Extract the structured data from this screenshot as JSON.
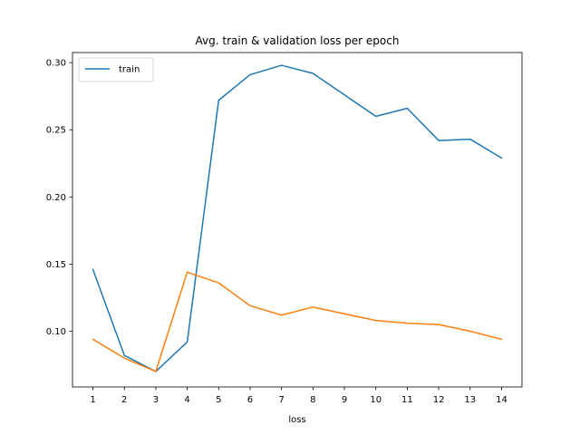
{
  "chart_data": {
    "type": "line",
    "title": "Avg. train & validation loss per epoch",
    "xlabel": "loss",
    "ylabel": "",
    "x": [
      1,
      2,
      3,
      4,
      5,
      6,
      7,
      8,
      9,
      10,
      11,
      12,
      13,
      14
    ],
    "xticks": [
      1,
      2,
      3,
      4,
      5,
      6,
      7,
      8,
      9,
      10,
      11,
      12,
      13,
      14
    ],
    "xlim": [
      0.35,
      14.65
    ],
    "ylim": [
      0.0585,
      0.3075
    ],
    "yticks": [
      0.1,
      0.15,
      0.2,
      0.25,
      0.3
    ],
    "ytick_labels": [
      "0.10",
      "0.15",
      "0.20",
      "0.25",
      "0.30"
    ],
    "grid": false,
    "legend": {
      "placement": "top-left",
      "entries": [
        "train"
      ]
    },
    "series": [
      {
        "name": "train",
        "color": "#1f77b4",
        "values": [
          0.146,
          0.082,
          0.07,
          0.092,
          0.272,
          0.291,
          0.298,
          0.292,
          0.276,
          0.26,
          0.266,
          0.242,
          0.243,
          0.229
        ]
      },
      {
        "color": "#ff7f0e",
        "values": [
          0.094,
          0.08,
          0.07,
          0.144,
          0.136,
          0.119,
          0.112,
          0.118,
          0.113,
          0.108,
          0.106,
          0.105,
          0.1,
          0.094
        ]
      }
    ]
  }
}
